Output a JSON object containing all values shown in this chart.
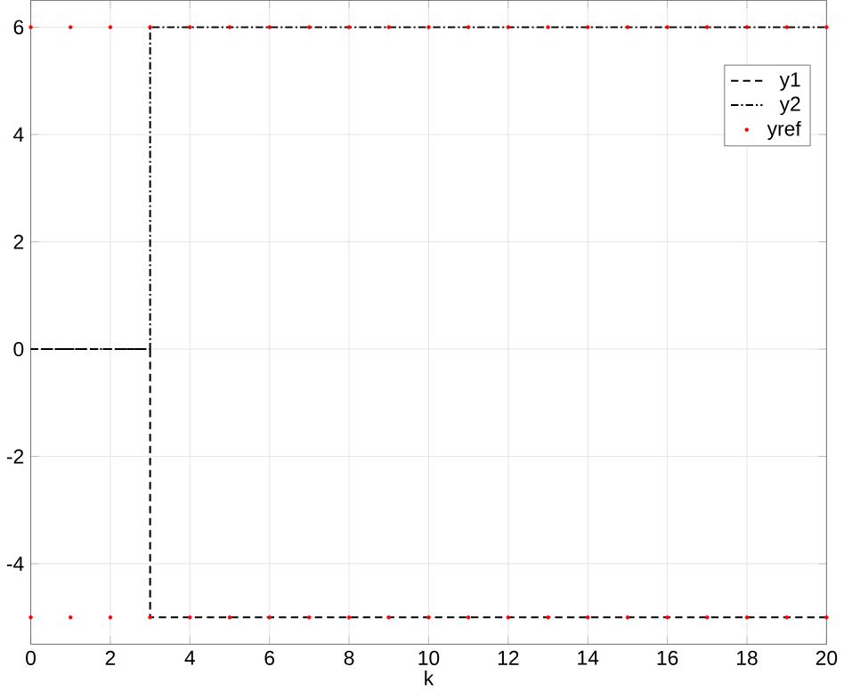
{
  "chart_data": {
    "type": "step",
    "xlabel": "k",
    "xlim": [
      0,
      20
    ],
    "ylim": [
      -5.5,
      6.5
    ],
    "xticks": [
      0,
      2,
      4,
      6,
      8,
      10,
      12,
      14,
      16,
      18,
      20
    ],
    "yticks": [
      -4,
      -2,
      0,
      2,
      4,
      6
    ],
    "grid": true,
    "legend": "top right",
    "series": [
      {
        "name": "y1",
        "color": "#000000",
        "line_style": "dashed",
        "x": [
          0,
          1,
          2,
          3,
          4,
          5,
          6,
          7,
          8,
          9,
          10,
          11,
          12,
          13,
          14,
          15,
          16,
          17,
          18,
          19,
          20
        ],
        "values": [
          0,
          0,
          0,
          -5,
          -5,
          -5,
          -5,
          -5,
          -5,
          -5,
          -5,
          -5,
          -5,
          -5,
          -5,
          -5,
          -5,
          -5,
          -5,
          -5,
          -5
        ]
      },
      {
        "name": "y2",
        "color": "#000000",
        "line_style": "dashdot",
        "x": [
          0,
          1,
          2,
          3,
          4,
          5,
          6,
          7,
          8,
          9,
          10,
          11,
          12,
          13,
          14,
          15,
          16,
          17,
          18,
          19,
          20
        ],
        "values": [
          0,
          0,
          0,
          6,
          6,
          6,
          6,
          6,
          6,
          6,
          6,
          6,
          6,
          6,
          6,
          6,
          6,
          6,
          6,
          6,
          6
        ]
      },
      {
        "name": "yref",
        "type": "scatter",
        "color": "#ff0000",
        "marker": "point",
        "x": [
          0,
          1,
          2,
          3,
          4,
          5,
          6,
          7,
          8,
          9,
          10,
          11,
          12,
          13,
          14,
          15,
          16,
          17,
          18,
          19,
          20,
          0,
          1,
          2,
          3,
          4,
          5,
          6,
          7,
          8,
          9,
          10,
          11,
          12,
          13,
          14,
          15,
          16,
          17,
          18,
          19,
          20
        ],
        "values": [
          6,
          6,
          6,
          6,
          6,
          6,
          6,
          6,
          6,
          6,
          6,
          6,
          6,
          6,
          6,
          6,
          6,
          6,
          6,
          6,
          6,
          -5,
          -5,
          -5,
          -5,
          -5,
          -5,
          -5,
          -5,
          -5,
          -5,
          -5,
          -5,
          -5,
          -5,
          -5,
          -5,
          -5,
          -5,
          -5,
          -5,
          -5
        ]
      }
    ]
  }
}
